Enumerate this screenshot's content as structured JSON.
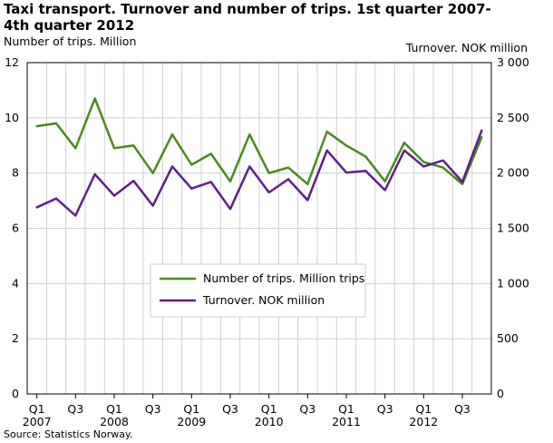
{
  "title": "Taxi transport. Turnover and number of trips. 1st quarter 2007-4th quarter 2012",
  "source": "Source: Statistics Norway.",
  "chart_data": {
    "type": "line",
    "title": "Taxi transport. Turnover and number of trips. 1st quarter 2007-4th quarter 2012",
    "ylabel_left": "Number of trips. Million",
    "ylabel_right": "Turnover. NOK million",
    "ylim_left": [
      0,
      12
    ],
    "yticks_left": [
      "0",
      "2",
      "4",
      "6",
      "8",
      "10",
      "12"
    ],
    "ylim_right": [
      0,
      3000
    ],
    "yticks_right": [
      "0",
      "500",
      "1 000",
      "1 500",
      "2 000",
      "2 500",
      "3 000"
    ],
    "xtick_quarters": [
      "Q1",
      "Q3",
      "Q1",
      "Q3",
      "Q1",
      "Q3",
      "Q1",
      "Q3",
      "Q1",
      "Q3",
      "Q1",
      "Q3"
    ],
    "xtick_years": [
      "2007",
      "",
      "2008",
      "",
      "2009",
      "",
      "2010",
      "",
      "2011",
      "",
      "2012",
      ""
    ],
    "x": [
      "2007Q1",
      "2007Q2",
      "2007Q3",
      "2007Q4",
      "2008Q1",
      "2008Q2",
      "2008Q3",
      "2008Q4",
      "2009Q1",
      "2009Q2",
      "2009Q3",
      "2009Q4",
      "2010Q1",
      "2010Q2",
      "2010Q3",
      "2010Q4",
      "2011Q1",
      "2011Q2",
      "2011Q3",
      "2011Q4",
      "2012Q1",
      "2012Q2",
      "2012Q3",
      "2012Q4"
    ],
    "grid": true,
    "legend_position": "center-left",
    "series": [
      {
        "name": "Number of trips. Million trips",
        "axis": "left",
        "color": "#4a8a1c",
        "values": [
          9.7,
          9.8,
          8.9,
          10.7,
          8.9,
          9.0,
          8.0,
          9.4,
          8.3,
          8.7,
          7.7,
          9.4,
          8.0,
          8.2,
          7.6,
          9.5,
          9.0,
          8.6,
          7.7,
          9.1,
          8.4,
          8.2,
          7.6,
          9.3
        ]
      },
      {
        "name": "Turnover. NOK million",
        "axis": "right",
        "color": "#5f1e8c",
        "values": [
          1690,
          1770,
          1615,
          1990,
          1795,
          1930,
          1705,
          2060,
          1860,
          1920,
          1675,
          2060,
          1825,
          1945,
          1755,
          2205,
          2005,
          2020,
          1845,
          2205,
          2060,
          2115,
          1920,
          2385
        ]
      }
    ]
  }
}
